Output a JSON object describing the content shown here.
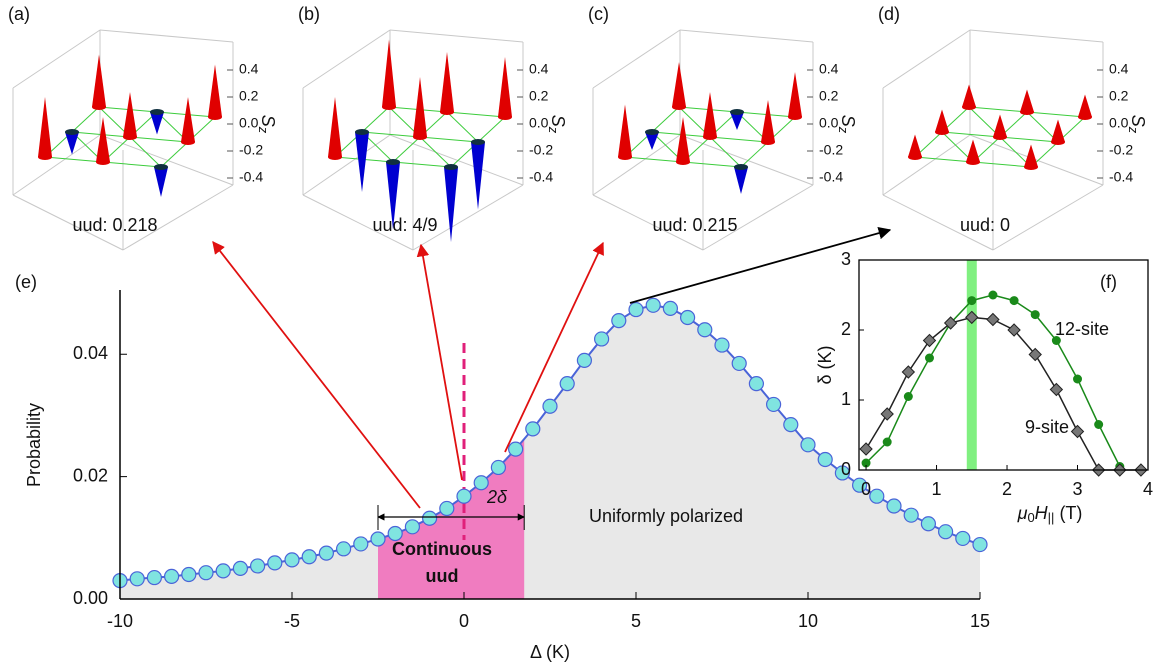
{
  "spin_panels": {
    "zticks": [
      0.4,
      0.2,
      {
        "value": 0,
        "label": "0.0"
      },
      -0.2,
      -0.4
    ],
    "zlabel": {
      "main": "S",
      "sub": "z"
    },
    "up_color": "#e00000",
    "down_color": "#0000d0",
    "panels": [
      {
        "label": "(a)",
        "caption": "uud: 0.218",
        "sites": [
          0.4,
          0.3,
          -0.2,
          -0.15,
          0.3,
          0.3,
          0.35,
          -0.15,
          0.35
        ]
      },
      {
        "label": "(b)",
        "caption": "uud: 4/9",
        "sites": [
          0.4,
          -0.45,
          -0.5,
          -0.4,
          0.4,
          -0.45,
          0.45,
          0.4,
          0.4
        ]
      },
      {
        "label": "(c)",
        "caption": "uud: 0.215",
        "sites": [
          0.35,
          0.3,
          -0.18,
          -0.12,
          0.3,
          0.28,
          0.3,
          -0.12,
          0.3
        ]
      },
      {
        "label": "(d)",
        "caption": "uud: 0",
        "sites": [
          0.15,
          0.15,
          0.15,
          0.15,
          0.15,
          0.15,
          0.15,
          0.15,
          0.15
        ]
      }
    ]
  },
  "chart_data": [
    {
      "type": "line",
      "label": "(e)",
      "xlabel": "Δ (K)",
      "ylabel": "Probability",
      "x": [
        -10,
        -9.5,
        -9,
        -8.5,
        -8,
        -7.5,
        -7,
        -6.5,
        -6,
        -5.5,
        -5,
        -4.5,
        -4,
        -3.5,
        -3,
        -2.5,
        -2,
        -1.5,
        -1,
        -0.5,
        0,
        0.5,
        1,
        1.5,
        2,
        2.5,
        3,
        3.5,
        4,
        4.5,
        5,
        5.5,
        6,
        6.5,
        7,
        7.5,
        8,
        8.5,
        9,
        9.5,
        10,
        10.5,
        11,
        11.5,
        12,
        12.5,
        13,
        13.5,
        14,
        14.5,
        15
      ],
      "values": [
        0.003,
        0.0033,
        0.0035,
        0.0037,
        0.004,
        0.0043,
        0.0046,
        0.005,
        0.0054,
        0.0059,
        0.0064,
        0.0069,
        0.0075,
        0.0082,
        0.009,
        0.0098,
        0.0107,
        0.0118,
        0.0132,
        0.0148,
        0.0168,
        0.019,
        0.0215,
        0.0245,
        0.0278,
        0.0315,
        0.0352,
        0.039,
        0.0425,
        0.0455,
        0.0473,
        0.048,
        0.0475,
        0.046,
        0.044,
        0.0415,
        0.0385,
        0.0352,
        0.0318,
        0.0285,
        0.0252,
        0.0228,
        0.0206,
        0.0186,
        0.0168,
        0.0152,
        0.0137,
        0.0123,
        0.011,
        0.0099,
        0.0089
      ],
      "color": "#4a64d8",
      "marker_color": "#80e4e0",
      "xlim": [
        -10,
        15
      ],
      "xticks": [
        -10,
        -5,
        0,
        5,
        10,
        15
      ],
      "ylim": [
        0,
        0.0505
      ],
      "yticks": [
        {
          "value": 0,
          "label": "0.00"
        },
        0.02,
        0.04
      ],
      "shade_range": [
        -2.5,
        1.75
      ],
      "shade_color": "#f07cc0",
      "area_color": "#e8e8e8",
      "marker_x": 0,
      "annotations": {
        "continuous": [
          "Continuous",
          "uud"
        ],
        "uniform": "Uniformly polarized",
        "two_delta": "2δ"
      }
    },
    {
      "type": "line",
      "label": "(f)",
      "ylabel": "δ (K)",
      "xlabel": {
        "main": "μ",
        "sub0": "0",
        "main2": "H",
        "sub2": "||",
        "unit": "(T)"
      },
      "x": [
        0,
        0.3,
        0.6,
        0.9,
        1.2,
        1.5,
        1.8,
        2.1,
        2.4,
        2.7,
        3.0,
        3.3,
        3.6,
        3.9
      ],
      "series": [
        {
          "name": "12-site",
          "color": "#1a8a1a",
          "marker": "circle",
          "values": [
            0.1,
            0.4,
            1.05,
            1.6,
            2.1,
            2.42,
            2.5,
            2.42,
            2.22,
            1.85,
            1.3,
            0.65,
            0.05,
            null
          ]
        },
        {
          "name": "9-site",
          "color": "#222222",
          "marker": "diamond",
          "values": [
            0.3,
            0.8,
            1.4,
            1.85,
            2.1,
            2.18,
            2.15,
            2.0,
            1.65,
            1.15,
            0.55,
            0,
            0,
            0
          ]
        }
      ],
      "band_x": 1.5,
      "band_color": "#80f080",
      "xlim": [
        -0.1,
        4
      ],
      "xticks": [
        0,
        1,
        2,
        3,
        4
      ],
      "ylim": [
        0,
        3
      ],
      "yticks": [
        0,
        1,
        2,
        3
      ]
    }
  ]
}
